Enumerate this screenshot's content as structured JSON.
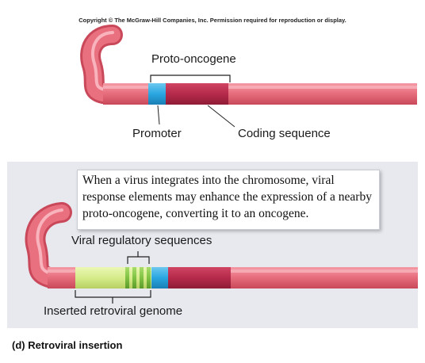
{
  "copyright": "Copyright © The McGraw-Hill Companies, Inc. Permission required for reproduction or display.",
  "top_diagram": {
    "proto_oncogene_label": "Proto-oncogene",
    "promoter_label": "Promoter",
    "coding_sequence_label": "Coding sequence"
  },
  "bottom_diagram": {
    "callout_text": "When a virus integrates into the chromosome, viral response elements may enhance the expression of a nearby proto-oncogene, converting it to an oncogene.",
    "viral_regulatory_label": "Viral regulatory sequences",
    "inserted_genome_label": "Inserted retroviral genome"
  },
  "caption": "(d) Retroviral insertion",
  "colors": {
    "chromosome": "#e8707f",
    "promoter": "#2aa6e0",
    "coding": "#b52a4a",
    "retroviral_genome": "#d6ec8a",
    "viral_regulatory": "#7fc243",
    "panel_background": "#e7e9ef"
  }
}
